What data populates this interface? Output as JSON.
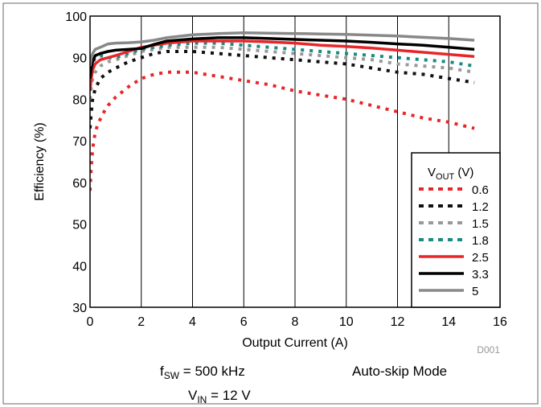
{
  "chart_data": {
    "type": "line",
    "xlabel": "Output Current (A)",
    "ylabel": "Efficiency (%)",
    "xlim": [
      0,
      16
    ],
    "ylim": [
      30,
      100
    ],
    "xticks": [
      "0",
      "2",
      "4",
      "6",
      "8",
      "10",
      "12",
      "14",
      "16"
    ],
    "yticks": [
      "30",
      "40",
      "50",
      "60",
      "70",
      "80",
      "90",
      "100"
    ],
    "grid": "vertical",
    "legend": {
      "title_main": "V",
      "title_sub": "OUT",
      "title_unit": " (V)",
      "placement": "bottom-right"
    },
    "series": [
      {
        "name": "0.6",
        "color": "#e8262a",
        "style": "dotted",
        "x": [
          0,
          0.05,
          0.1,
          0.2,
          0.3,
          0.5,
          0.7,
          1,
          1.5,
          2,
          2.5,
          3,
          3.5,
          4,
          4.5,
          5,
          6,
          7,
          8,
          9,
          10,
          11,
          12,
          13,
          14,
          15
        ],
        "y": [
          58,
          64,
          68,
          72,
          74,
          76.5,
          78.5,
          80.5,
          83,
          85,
          86,
          86.5,
          86.5,
          86.5,
          86,
          85.5,
          84.5,
          83.5,
          82,
          81,
          80,
          78.5,
          77,
          75.5,
          74.5,
          73
        ]
      },
      {
        "name": "1.2",
        "color": "#111111",
        "style": "dotted",
        "x": [
          0,
          0.05,
          0.1,
          0.2,
          0.4,
          0.7,
          1,
          1.5,
          2,
          2.5,
          3,
          4,
          5,
          6,
          7,
          8,
          9,
          10,
          11,
          12,
          13,
          14,
          15
        ],
        "y": [
          73,
          77,
          80,
          82.5,
          85,
          86.5,
          87.5,
          89,
          90,
          91,
          91.5,
          91.5,
          91,
          90.5,
          90,
          89.5,
          89,
          88.5,
          87.5,
          86.5,
          86,
          85,
          84
        ]
      },
      {
        "name": "1.5",
        "color": "#999999",
        "style": "dotted",
        "x": [
          0,
          0.05,
          0.1,
          0.2,
          0.4,
          0.7,
          1,
          1.5,
          2,
          2.5,
          3,
          4,
          5,
          6,
          7,
          8,
          9,
          10,
          11,
          12,
          13,
          14,
          15
        ],
        "y": [
          80,
          83,
          85,
          86.5,
          88,
          89,
          89.5,
          90.5,
          91.5,
          92,
          92.5,
          92.5,
          92.5,
          92,
          91.5,
          91,
          90.5,
          90,
          89.5,
          88.5,
          88,
          87.5,
          86.5
        ]
      },
      {
        "name": "1.8",
        "color": "#1a8a82",
        "style": "dotted",
        "x": [
          0,
          0.05,
          0.1,
          0.2,
          0.4,
          0.7,
          1,
          1.5,
          2,
          2.5,
          3,
          4,
          5,
          6,
          7,
          8,
          9,
          10,
          11,
          12,
          13,
          14,
          15
        ],
        "y": [
          85,
          87,
          88.5,
          90,
          90.5,
          90,
          90,
          91,
          92,
          92.5,
          93,
          93.5,
          93.5,
          93,
          92.5,
          92,
          91.5,
          91,
          90.5,
          90,
          89.5,
          89,
          88
        ]
      },
      {
        "name": "2.5",
        "color": "#e8262a",
        "style": "solid",
        "x": [
          0,
          0.05,
          0.1,
          0.2,
          0.4,
          0.7,
          1,
          1.5,
          2,
          2.5,
          3,
          4,
          5,
          6,
          7,
          8,
          9,
          10,
          11,
          12,
          13,
          14,
          15
        ],
        "y": [
          82,
          85,
          87,
          88.5,
          89.5,
          90,
          90.5,
          91.5,
          92.5,
          93,
          93.5,
          94,
          94,
          94,
          93.8,
          93.5,
          93,
          92.7,
          92.3,
          91.8,
          91.3,
          90.8,
          90.3
        ]
      },
      {
        "name": "3.3",
        "color": "#000000",
        "style": "solid",
        "x": [
          0,
          0.05,
          0.1,
          0.2,
          0.4,
          0.7,
          1,
          1.5,
          2,
          2.5,
          3,
          4,
          5,
          6,
          7,
          8,
          9,
          10,
          11,
          12,
          13,
          14,
          15
        ],
        "y": [
          85,
          87.5,
          89,
          90.5,
          91,
          91.5,
          91.8,
          92,
          92.2,
          93.2,
          94,
          94.5,
          94.8,
          94.8,
          94.6,
          94.4,
          94.2,
          94,
          93.7,
          93.3,
          93,
          92.5,
          92
        ]
      },
      {
        "name": "5",
        "color": "#888888",
        "style": "solid",
        "x": [
          0,
          0.05,
          0.1,
          0.2,
          0.4,
          0.7,
          1,
          1.5,
          2,
          2.5,
          3,
          4,
          5,
          6,
          7,
          8,
          9,
          10,
          11,
          12,
          13,
          14,
          15
        ],
        "y": [
          88,
          90,
          91,
          92,
          92.5,
          93.3,
          93.5,
          93.6,
          93.8,
          94.2,
          94.8,
          95.5,
          95.8,
          96,
          95.9,
          95.8,
          95.7,
          95.6,
          95.4,
          95.2,
          94.9,
          94.6,
          94.2
        ]
      }
    ]
  },
  "annotations": {
    "doc_id": "D001",
    "fsw_main": "f",
    "fsw_sub": "SW",
    "fsw_rest": " = 500 kHz",
    "vin_main": "V",
    "vin_sub": "IN",
    "vin_rest": " = 12 V",
    "mode": "Auto-skip Mode"
  }
}
